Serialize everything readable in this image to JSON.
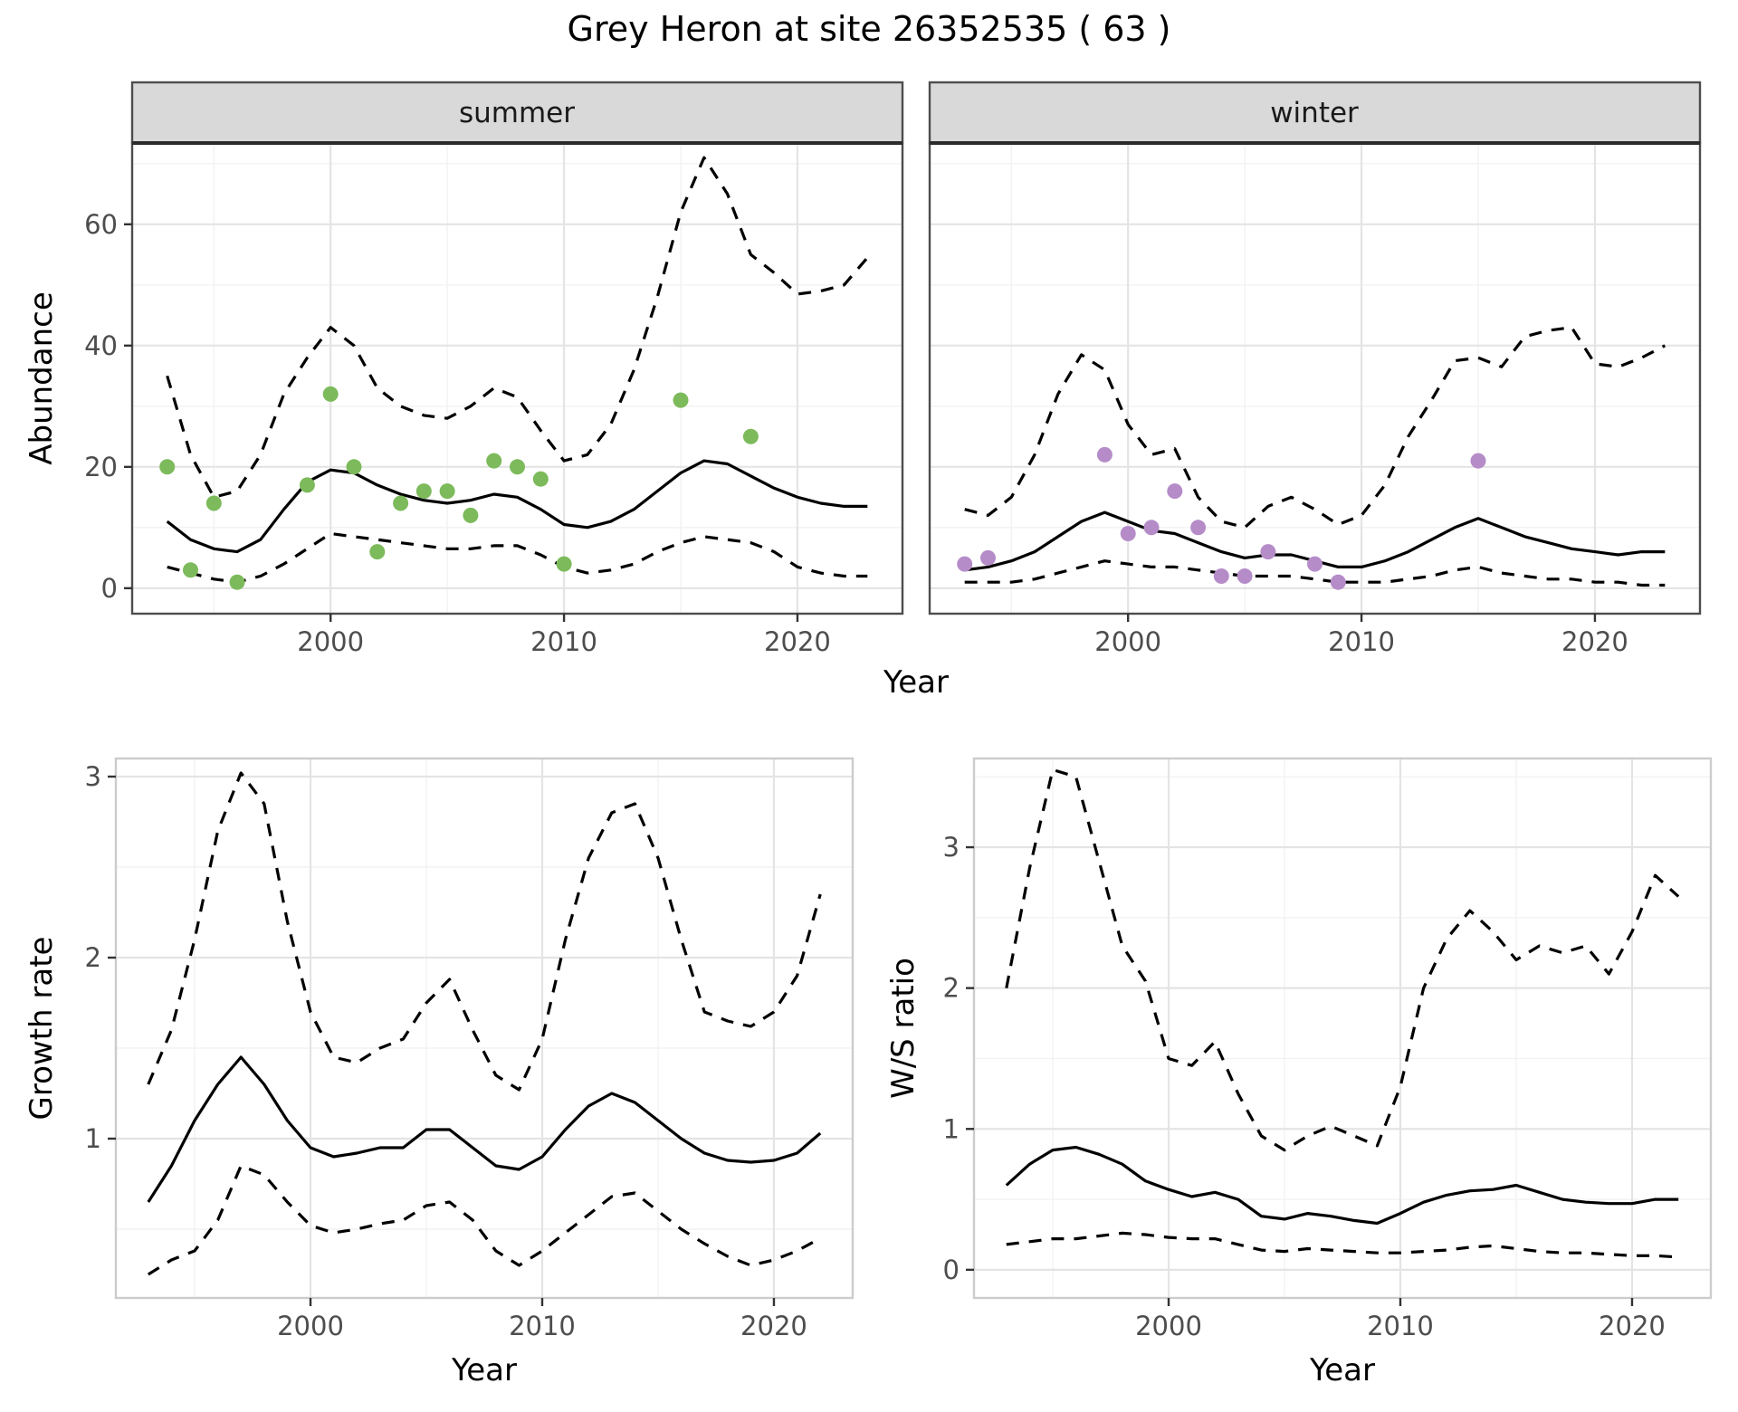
{
  "title": "Grey Heron at site 26352535 ( 63 )",
  "colors": {
    "background": "#ffffff",
    "line": "#000000",
    "summer_point": "#7cba5b",
    "winter_point": "#b58cc8",
    "strip_bg": "#d9d9d9",
    "grid_major": "#e4e4e4",
    "grid_minor": "#f2f2f2",
    "panel_border_top_row": "#4d4d4d",
    "panel_border_bottom_row": "#cccccc",
    "tick_label": "#4d4d4d",
    "tick_mark": "#333333"
  },
  "chart_data": [
    {
      "id": "abundance-summer",
      "type": "line",
      "facet_label": "summer",
      "xlabel": "Year",
      "ylabel": "Abundance",
      "xlim": [
        1991.5,
        2024.5
      ],
      "ylim": [
        -4.2,
        73.4
      ],
      "xticks": [
        2000,
        2010,
        2020
      ],
      "yticks": [
        0,
        20,
        40,
        60
      ],
      "xminor": [
        1995,
        2005,
        2015
      ],
      "yminor": [
        10,
        30,
        50,
        70
      ],
      "x": [
        1993,
        1994,
        1995,
        1996,
        1997,
        1998,
        1999,
        2000,
        2001,
        2002,
        2003,
        2004,
        2005,
        2006,
        2007,
        2008,
        2009,
        2010,
        2011,
        2012,
        2013,
        2014,
        2015,
        2016,
        2017,
        2018,
        2019,
        2020,
        2021,
        2022,
        2023
      ],
      "series": [
        {
          "name": "model-fit",
          "style": "solid",
          "values": [
            11,
            8,
            6.5,
            6,
            8,
            13,
            17.5,
            19.5,
            19,
            17,
            15.5,
            14.5,
            14,
            14.5,
            15.5,
            15,
            13,
            10.5,
            10,
            11,
            13,
            16,
            19,
            21,
            20.5,
            18.5,
            16.5,
            15,
            14,
            13.5,
            13.5
          ]
        },
        {
          "name": "ci-upper",
          "style": "dashed",
          "values": [
            35,
            22,
            15,
            16,
            22,
            32,
            38,
            43,
            40,
            33,
            30,
            28.5,
            28,
            30,
            33,
            31.5,
            26,
            21,
            22,
            27,
            36,
            48,
            62,
            71,
            65,
            55,
            52,
            48.5,
            49,
            50,
            54.5
          ]
        },
        {
          "name": "ci-lower",
          "style": "dashed",
          "values": [
            3.5,
            2.5,
            1.5,
            1,
            2,
            4,
            6.5,
            9,
            8.5,
            8,
            7.5,
            7,
            6.5,
            6.5,
            7,
            7,
            5.5,
            3.5,
            2.5,
            3,
            4,
            6,
            7.5,
            8.5,
            8,
            7.5,
            6,
            3.5,
            2.5,
            2,
            2
          ]
        }
      ],
      "points": {
        "name": "observed-counts-summer",
        "color_key": "summer_point",
        "x": [
          1993,
          1994,
          1995,
          1996,
          1999,
          2000,
          2001,
          2002,
          2003,
          2004,
          2005,
          2006,
          2007,
          2008,
          2009,
          2010,
          2015,
          2018
        ],
        "y": [
          20,
          3,
          14,
          1,
          17,
          32,
          20,
          6,
          14,
          16,
          16,
          12,
          21,
          20,
          18,
          4,
          31,
          25
        ]
      }
    },
    {
      "id": "abundance-winter",
      "type": "line",
      "facet_label": "winter",
      "xlabel": "Year",
      "ylabel": "Abundance",
      "xlim": [
        1991.5,
        2024.5
      ],
      "ylim": [
        -4.2,
        73.4
      ],
      "xticks": [
        2000,
        2010,
        2020
      ],
      "yticks": [
        0,
        20,
        40,
        60
      ],
      "xminor": [
        1995,
        2005,
        2015
      ],
      "yminor": [
        10,
        30,
        50,
        70
      ],
      "x": [
        1993,
        1994,
        1995,
        1996,
        1997,
        1998,
        1999,
        2000,
        2001,
        2002,
        2003,
        2004,
        2005,
        2006,
        2007,
        2008,
        2009,
        2010,
        2011,
        2012,
        2013,
        2014,
        2015,
        2016,
        2017,
        2018,
        2019,
        2020,
        2021,
        2022,
        2023
      ],
      "series": [
        {
          "name": "model-fit",
          "style": "solid",
          "values": [
            3,
            3.5,
            4.5,
            6,
            8.5,
            11,
            12.5,
            11,
            9.5,
            9,
            7.5,
            6,
            5,
            5.5,
            5.5,
            4.5,
            3.5,
            3.5,
            4.5,
            6,
            8,
            10,
            11.5,
            10,
            8.5,
            7.5,
            6.5,
            6,
            5.5,
            6,
            6
          ]
        },
        {
          "name": "ci-upper",
          "style": "dashed",
          "values": [
            13,
            12,
            15,
            22,
            32,
            38.5,
            36,
            27,
            22,
            23,
            15,
            11,
            10,
            13.5,
            15,
            13,
            10.5,
            12,
            17,
            25,
            31,
            37.5,
            38,
            36.5,
            41.5,
            42.5,
            43,
            37,
            36.5,
            38,
            40
          ]
        },
        {
          "name": "ci-lower",
          "style": "dashed",
          "values": [
            1,
            1,
            1,
            1.5,
            2.5,
            3.5,
            4.5,
            4,
            3.5,
            3.5,
            3,
            2.5,
            2,
            2,
            2,
            1.5,
            1,
            1,
            1,
            1.5,
            2,
            3,
            3.5,
            2.5,
            2,
            1.5,
            1.5,
            1,
            1,
            0.5,
            0.5
          ]
        }
      ],
      "points": {
        "name": "observed-counts-winter",
        "color_key": "winter_point",
        "x": [
          1993,
          1994,
          1999,
          2000,
          2001,
          2002,
          2003,
          2004,
          2005,
          2006,
          2008,
          2009,
          2015
        ],
        "y": [
          4,
          5,
          22,
          9,
          10,
          16,
          10,
          2,
          2,
          6,
          4,
          1,
          21
        ]
      }
    },
    {
      "id": "growth-rate",
      "type": "line",
      "xlabel": "Year",
      "ylabel": "Growth rate",
      "xlim": [
        1991.6,
        2023.4
      ],
      "ylim": [
        0.12,
        3.1
      ],
      "xticks": [
        2000,
        2010,
        2020
      ],
      "yticks": [
        1,
        2,
        3
      ],
      "xminor": [
        1995,
        2005,
        2015
      ],
      "yminor": [
        0.5,
        1.5,
        2.5
      ],
      "x": [
        1993,
        1994,
        1995,
        1996,
        1997,
        1998,
        1999,
        2000,
        2001,
        2002,
        2003,
        2004,
        2005,
        2006,
        2007,
        2008,
        2009,
        2010,
        2011,
        2012,
        2013,
        2014,
        2015,
        2016,
        2017,
        2018,
        2019,
        2020,
        2021,
        2022
      ],
      "series": [
        {
          "name": "model-fit",
          "style": "solid",
          "values": [
            0.65,
            0.85,
            1.1,
            1.3,
            1.45,
            1.3,
            1.1,
            0.95,
            0.9,
            0.92,
            0.95,
            0.95,
            1.05,
            1.05,
            0.95,
            0.85,
            0.83,
            0.9,
            1.05,
            1.18,
            1.25,
            1.2,
            1.1,
            1.0,
            0.92,
            0.88,
            0.87,
            0.88,
            0.92,
            1.03
          ]
        },
        {
          "name": "ci-upper",
          "style": "dashed",
          "values": [
            1.3,
            1.6,
            2.1,
            2.7,
            3.02,
            2.85,
            2.2,
            1.7,
            1.45,
            1.42,
            1.5,
            1.55,
            1.75,
            1.88,
            1.6,
            1.35,
            1.27,
            1.55,
            2.1,
            2.55,
            2.8,
            2.85,
            2.55,
            2.1,
            1.7,
            1.65,
            1.62,
            1.7,
            1.9,
            2.35
          ]
        },
        {
          "name": "ci-lower",
          "style": "dashed",
          "values": [
            0.25,
            0.33,
            0.38,
            0.55,
            0.85,
            0.8,
            0.65,
            0.52,
            0.48,
            0.5,
            0.53,
            0.55,
            0.63,
            0.65,
            0.55,
            0.38,
            0.3,
            0.38,
            0.48,
            0.58,
            0.68,
            0.7,
            0.6,
            0.5,
            0.42,
            0.35,
            0.3,
            0.33,
            0.38,
            0.45
          ]
        }
      ]
    },
    {
      "id": "ws-ratio",
      "type": "line",
      "xlabel": "Year",
      "ylabel": "W/S ratio",
      "xlim": [
        1991.6,
        2023.4
      ],
      "ylim": [
        -0.2,
        3.63
      ],
      "xticks": [
        2000,
        2010,
        2020
      ],
      "yticks": [
        0,
        1,
        2,
        3
      ],
      "xminor": [
        1995,
        2005,
        2015
      ],
      "yminor": [
        0.5,
        1.5,
        2.5,
        3.5
      ],
      "x": [
        1993,
        1994,
        1995,
        1996,
        1997,
        1998,
        1999,
        2000,
        2001,
        2002,
        2003,
        2004,
        2005,
        2006,
        2007,
        2008,
        2009,
        2010,
        2011,
        2012,
        2013,
        2014,
        2015,
        2016,
        2017,
        2018,
        2019,
        2020,
        2021,
        2022
      ],
      "series": [
        {
          "name": "model-fit",
          "style": "solid",
          "values": [
            0.6,
            0.75,
            0.85,
            0.87,
            0.82,
            0.75,
            0.63,
            0.57,
            0.52,
            0.55,
            0.5,
            0.38,
            0.36,
            0.4,
            0.38,
            0.35,
            0.33,
            0.4,
            0.48,
            0.53,
            0.56,
            0.57,
            0.6,
            0.55,
            0.5,
            0.48,
            0.47,
            0.47,
            0.5,
            0.5
          ]
        },
        {
          "name": "ci-upper",
          "style": "dashed",
          "values": [
            2.0,
            2.85,
            3.55,
            3.5,
            2.9,
            2.3,
            2.05,
            1.5,
            1.45,
            1.62,
            1.25,
            0.95,
            0.85,
            0.95,
            1.02,
            0.95,
            0.88,
            1.3,
            2.0,
            2.35,
            2.55,
            2.4,
            2.2,
            2.3,
            2.25,
            2.3,
            2.1,
            2.4,
            2.8,
            2.65
          ]
        },
        {
          "name": "ci-lower",
          "style": "dashed",
          "values": [
            0.18,
            0.2,
            0.22,
            0.22,
            0.24,
            0.26,
            0.25,
            0.23,
            0.22,
            0.22,
            0.18,
            0.14,
            0.13,
            0.15,
            0.14,
            0.13,
            0.12,
            0.12,
            0.13,
            0.14,
            0.16,
            0.17,
            0.15,
            0.13,
            0.12,
            0.12,
            0.11,
            0.1,
            0.1,
            0.09
          ]
        }
      ]
    }
  ]
}
